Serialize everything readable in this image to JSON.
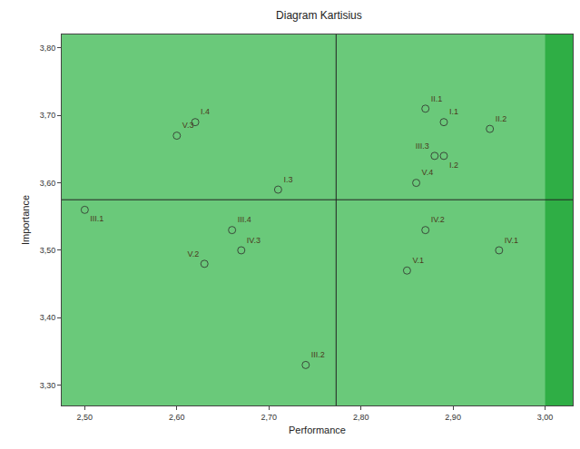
{
  "chart_data": {
    "type": "scatter",
    "title": "Diagram Kartisius",
    "x_label": "Performance",
    "y_label": "Importance",
    "labels": [
      "II.1",
      "I.1",
      "II.2",
      "III.3",
      "I.2",
      "V.4",
      "I.3",
      "I.4",
      "V.3",
      "III.1",
      "III.4",
      "IV.3",
      "V.2",
      "III.2",
      "IV.2",
      "IV.1",
      "V.1"
    ],
    "x": [
      2.87,
      2.89,
      2.94,
      2.88,
      2.89,
      2.86,
      2.71,
      2.62,
      2.6,
      2.5,
      2.66,
      2.67,
      2.63,
      2.74,
      2.87,
      2.95,
      2.85
    ],
    "y": [
      3.71,
      3.69,
      3.68,
      3.64,
      3.64,
      3.6,
      3.59,
      3.69,
      3.67,
      3.56,
      3.53,
      3.5,
      3.48,
      3.33,
      3.53,
      3.5,
      3.47
    ],
    "reference_lines": {
      "x": 2.773,
      "y": 3.575
    },
    "xlim": [
      2.475,
      3.03
    ],
    "ylim": [
      3.27,
      3.82
    ],
    "xticks": [
      {
        "value": 2.5,
        "label": "2,50"
      },
      {
        "value": 2.6,
        "label": "2,60"
      },
      {
        "value": 2.7,
        "label": "2,70"
      },
      {
        "value": 2.8,
        "label": "2,80"
      },
      {
        "value": 2.9,
        "label": "2,90"
      },
      {
        "value": 3.0,
        "label": "3,00"
      }
    ],
    "yticks": [
      {
        "value": 3.3,
        "label": "3,30"
      },
      {
        "value": 3.4,
        "label": "3,40"
      },
      {
        "value": 3.5,
        "label": "3,50"
      },
      {
        "value": 3.6,
        "label": "3,60"
      },
      {
        "value": 3.7,
        "label": "3,70"
      },
      {
        "value": 3.8,
        "label": "3,80"
      }
    ],
    "marker": "open-circle",
    "color": "#3a4a3a",
    "grid": false,
    "data_labels": true
  }
}
